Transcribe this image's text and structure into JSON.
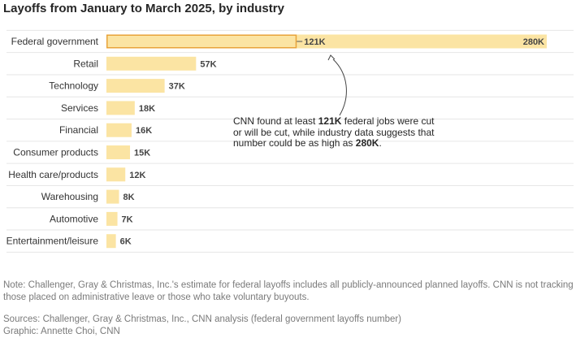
{
  "chart_data": {
    "type": "bar",
    "orientation": "horizontal",
    "title": "Layoffs from January to March 2025, by industry",
    "categories": [
      "Federal government",
      "Retail",
      "Technology",
      "Services",
      "Financial",
      "Consumer products",
      "Health care/products",
      "Warehousing",
      "Automotive",
      "Entertainment/leisure"
    ],
    "values": [
      280,
      57,
      37,
      18,
      16,
      15,
      12,
      8,
      7,
      6
    ],
    "value_labels": [
      "280K",
      "57K",
      "37K",
      "18K",
      "16K",
      "15K",
      "12K",
      "8K",
      "7K",
      "6K"
    ],
    "unit": "thousands of layoffs",
    "xlim": [
      0,
      280
    ],
    "highlight": {
      "category": "Federal government",
      "value": 121,
      "label": "121K"
    },
    "bar_color": "#fbe4a3",
    "highlight_color": "#e8a33a",
    "annotation": {
      "text_1": "CNN found at least ",
      "bold_1": "121K",
      "text_2": " federal jobs were cut or will be cut, while industry data suggests that number could be as high as ",
      "bold_2": "280K",
      "text_3": "."
    }
  },
  "footer": {
    "note": "Note: Challenger, Gray & Christmas, Inc.'s estimate for federal layoffs includes all publicly-announced planned layoffs. CNN is not tracking those placed on administrative leave or those who take voluntary buyouts.",
    "sources": "Sources: Challenger, Gray & Christmas, Inc., CNN analysis (federal government layoffs number)",
    "graphic": "Graphic: Annette Choi, CNN"
  }
}
